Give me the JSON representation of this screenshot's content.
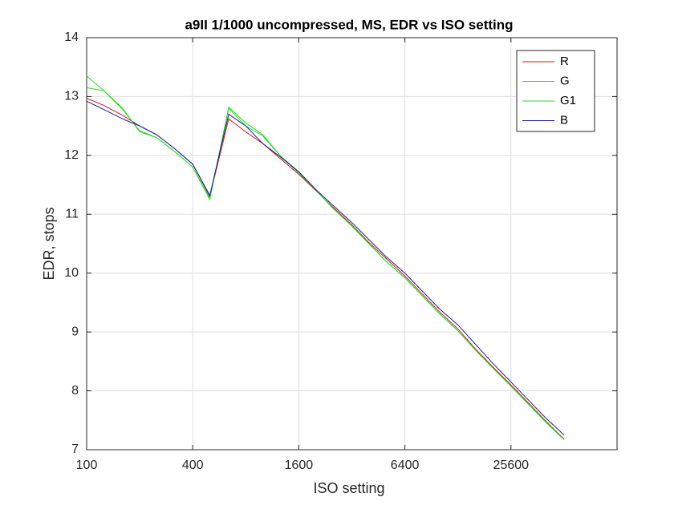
{
  "chart_data": {
    "type": "line",
    "title": "a9II 1/1000 uncompressed, MS, EDR vs ISO setting",
    "x_label": "ISO setting",
    "y_label": "EDR, stops",
    "x": [
      100,
      125,
      160,
      200,
      250,
      320,
      400,
      500,
      640,
      800,
      1000,
      1250,
      1600,
      2000,
      2500,
      3200,
      4000,
      5000,
      6400,
      8000,
      10000,
      12800,
      16000,
      20000,
      25600,
      32000,
      40000,
      51200
    ],
    "series": [
      {
        "name": "R",
        "color": "#d41a1a",
        "values": [
          12.97,
          12.85,
          12.68,
          12.5,
          12.35,
          12.1,
          11.85,
          11.3,
          12.62,
          12.4,
          12.2,
          11.95,
          11.68,
          11.4,
          11.12,
          10.82,
          10.52,
          10.25,
          9.95,
          9.65,
          9.35,
          9.05,
          8.72,
          8.42,
          8.1,
          7.8,
          7.5,
          7.18
        ]
      },
      {
        "name": "G",
        "color": "#19e619",
        "values": [
          13.35,
          13.1,
          12.8,
          12.4,
          12.3,
          12.05,
          11.8,
          11.25,
          12.82,
          12.55,
          12.35,
          12.0,
          11.72,
          11.42,
          11.1,
          10.8,
          10.5,
          10.2,
          9.92,
          9.62,
          9.32,
          9.02,
          8.7,
          8.4,
          8.08,
          7.78,
          7.48,
          7.17
        ]
      },
      {
        "name": "G1",
        "color": "#2ad92a",
        "values": [
          13.15,
          13.1,
          12.78,
          12.42,
          12.3,
          12.05,
          11.8,
          11.27,
          12.8,
          12.5,
          12.33,
          12.0,
          11.7,
          11.41,
          11.1,
          10.8,
          10.5,
          10.2,
          9.92,
          9.62,
          9.32,
          9.02,
          8.7,
          8.4,
          8.08,
          7.78,
          7.48,
          7.17
        ]
      },
      {
        "name": "B",
        "color": "#1a1aa6",
        "values": [
          12.92,
          12.78,
          12.62,
          12.5,
          12.35,
          12.1,
          11.85,
          11.32,
          12.7,
          12.5,
          12.2,
          11.98,
          11.72,
          11.42,
          11.15,
          10.86,
          10.57,
          10.28,
          10.0,
          9.7,
          9.4,
          9.12,
          8.8,
          8.48,
          8.15,
          7.85,
          7.55,
          7.25
        ]
      }
    ],
    "xlim": [
      100,
      102400
    ],
    "xticks": [
      100,
      400,
      1600,
      6400,
      25600
    ],
    "xscale": "log",
    "ylim": [
      7,
      14
    ],
    "yticks": [
      7,
      8,
      9,
      10,
      11,
      12,
      13,
      14
    ],
    "grid": true,
    "legend": "top-right"
  }
}
